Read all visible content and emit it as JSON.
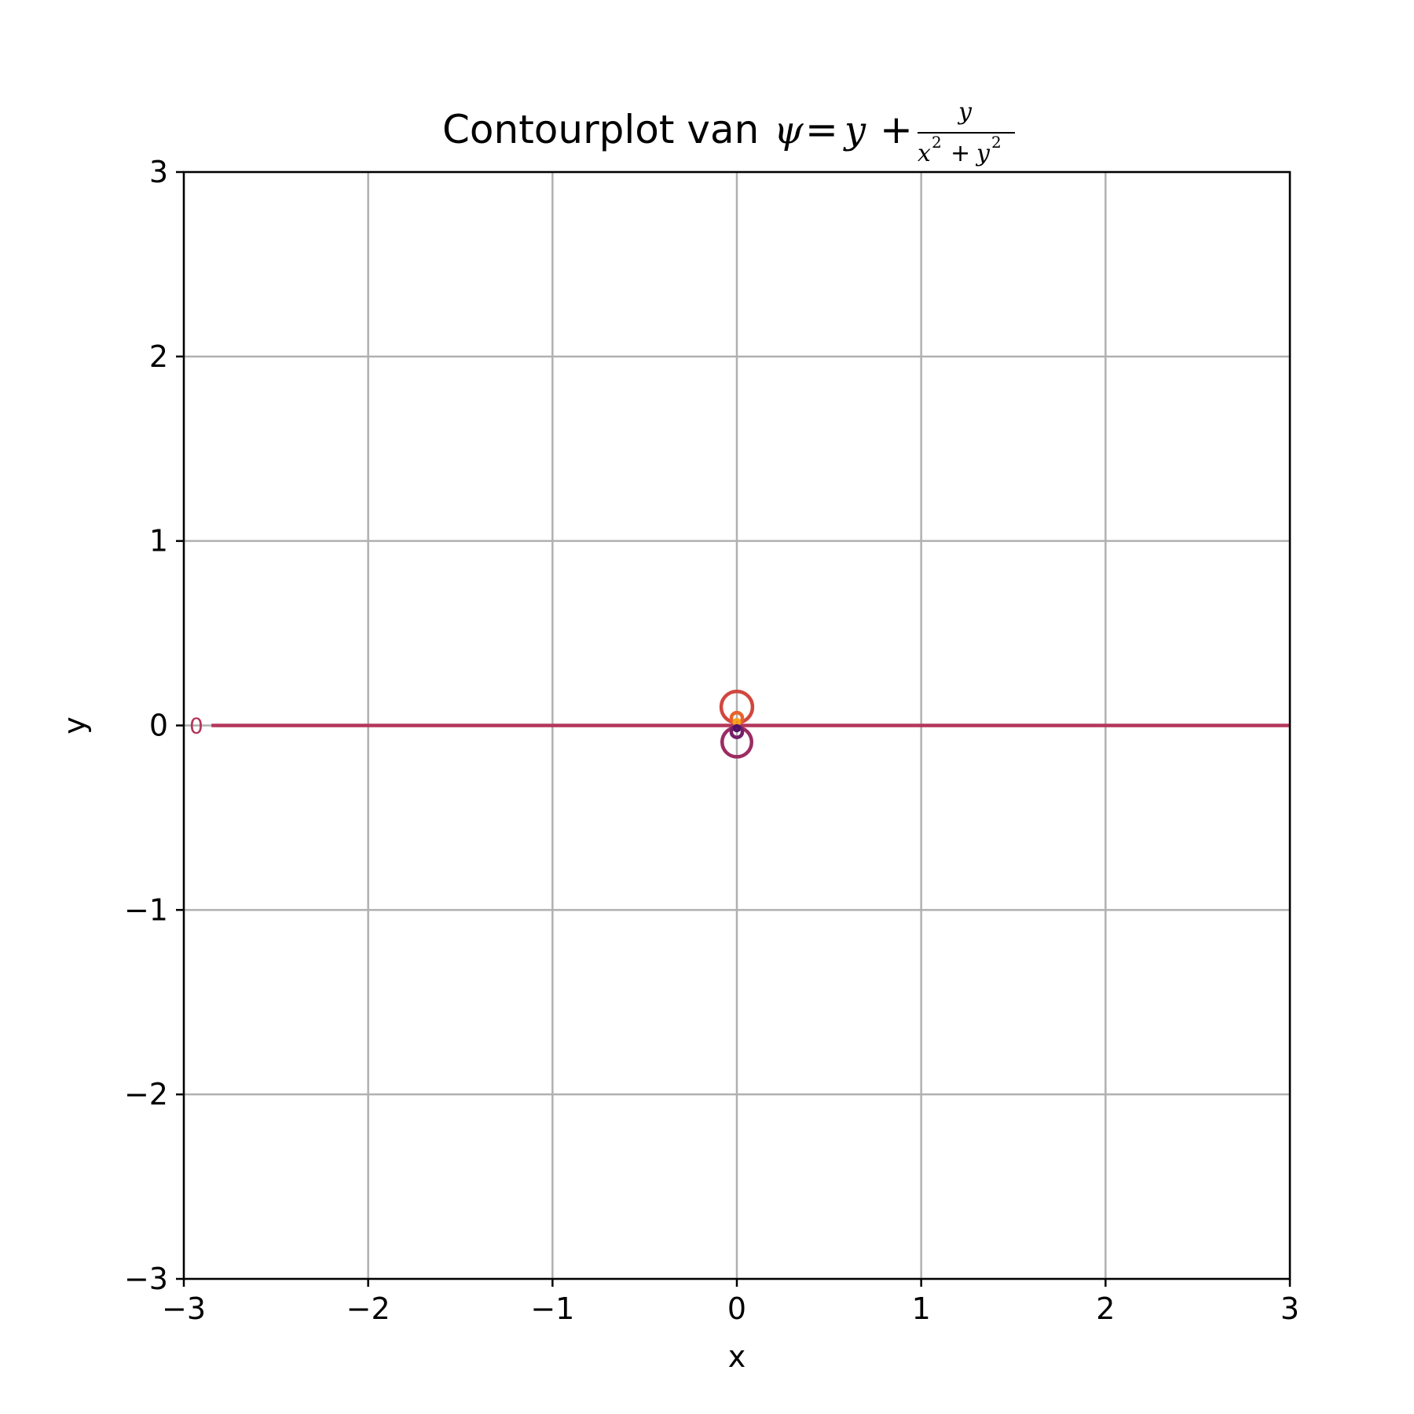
{
  "chart_data": {
    "type": "contour",
    "title": {
      "prefix": "Contourplot van ",
      "lhs": "ψ",
      "equals": "=",
      "term": "y",
      "plus": "+",
      "numerator": "y",
      "denominator_x": "x",
      "denominator_plus": "+",
      "denominator_y": "y",
      "exponent": "2"
    },
    "xlabel": "x",
    "ylabel": "y",
    "xlim": [
      -3,
      3
    ],
    "ylim": [
      -3,
      3
    ],
    "xticks": [
      -3,
      -2,
      -1,
      0,
      1,
      2,
      3
    ],
    "yticks": [
      -3,
      -2,
      -1,
      0,
      1,
      2,
      3
    ],
    "xtick_labels": [
      "−3",
      "−2",
      "−1",
      "0",
      "1",
      "2",
      "3"
    ],
    "ytick_labels": [
      "−3",
      "−2",
      "−1",
      "0",
      "1",
      "2",
      "3"
    ],
    "grid": true,
    "zero_level": {
      "value": 0,
      "label": "0",
      "x_start": -2.85,
      "x_end": 3,
      "color": "#b5365b"
    },
    "closed_contours": [
      {
        "name": "upper-outer",
        "cx": 0,
        "cy": 0.1,
        "r": 0.085,
        "color": "#d0473f"
      },
      {
        "name": "upper-mid",
        "cx": 0,
        "cy": 0.04,
        "r": 0.03,
        "color": "#e8632a"
      },
      {
        "name": "upper-inner",
        "cx": 0,
        "cy": 0.018,
        "r": 0.013,
        "color": "#f8a21d"
      },
      {
        "name": "lower-outer",
        "cx": 0,
        "cy": -0.09,
        "r": 0.08,
        "color": "#9c2c62"
      },
      {
        "name": "lower-mid",
        "cx": 0,
        "cy": -0.035,
        "r": 0.03,
        "color": "#761e6a"
      },
      {
        "name": "lower-inner",
        "cx": 0,
        "cy": -0.015,
        "r": 0.012,
        "color": "#4e1466"
      }
    ],
    "colors": {
      "grid": "#b0b0b0",
      "axes": "#000000"
    }
  }
}
